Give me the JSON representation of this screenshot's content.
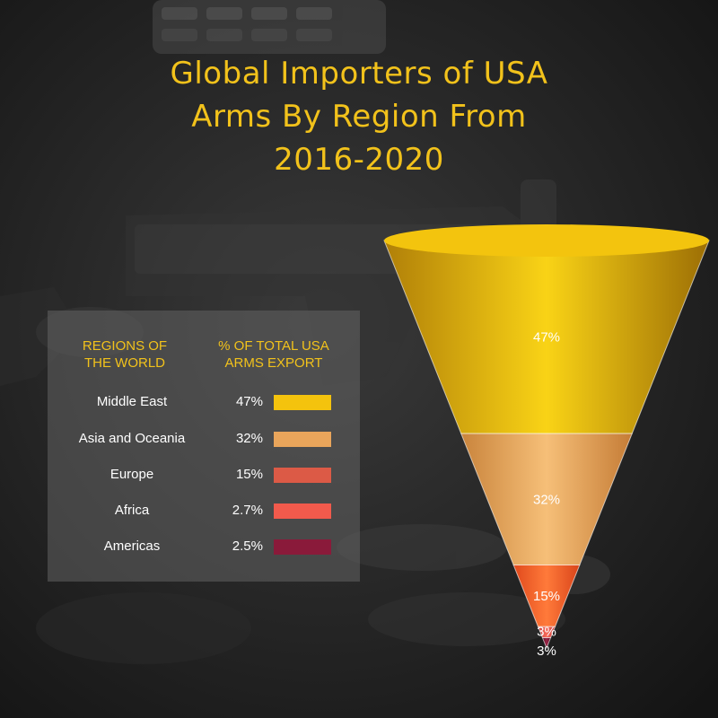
{
  "title_lines": [
    "Global Importers of USA",
    "Arms By Region From",
    "2016-2020"
  ],
  "legend": {
    "region_header": [
      "REGIONS OF",
      "THE WORLD"
    ],
    "percent_header": [
      "% OF TOTAL USA",
      "ARMS EXPORT"
    ]
  },
  "chart_data": {
    "type": "funnel",
    "title": "Global Importers of USA Arms By Region From 2016-2020",
    "categories": [
      "Middle East",
      "Asia and Oceania",
      "Europe",
      "Africa",
      "Americas"
    ],
    "values": [
      47,
      32,
      15,
      2.7,
      2.5
    ],
    "value_labels": [
      "47%",
      "32%",
      "15%",
      "2.7%",
      "2.5%"
    ],
    "slice_labels": [
      "47%",
      "32%",
      "15%",
      "3%",
      "3%"
    ],
    "colors": [
      "#f4c30d",
      "#e9a55b",
      "#dc5a46",
      "#f25a4c",
      "#8a1a3a"
    ]
  }
}
